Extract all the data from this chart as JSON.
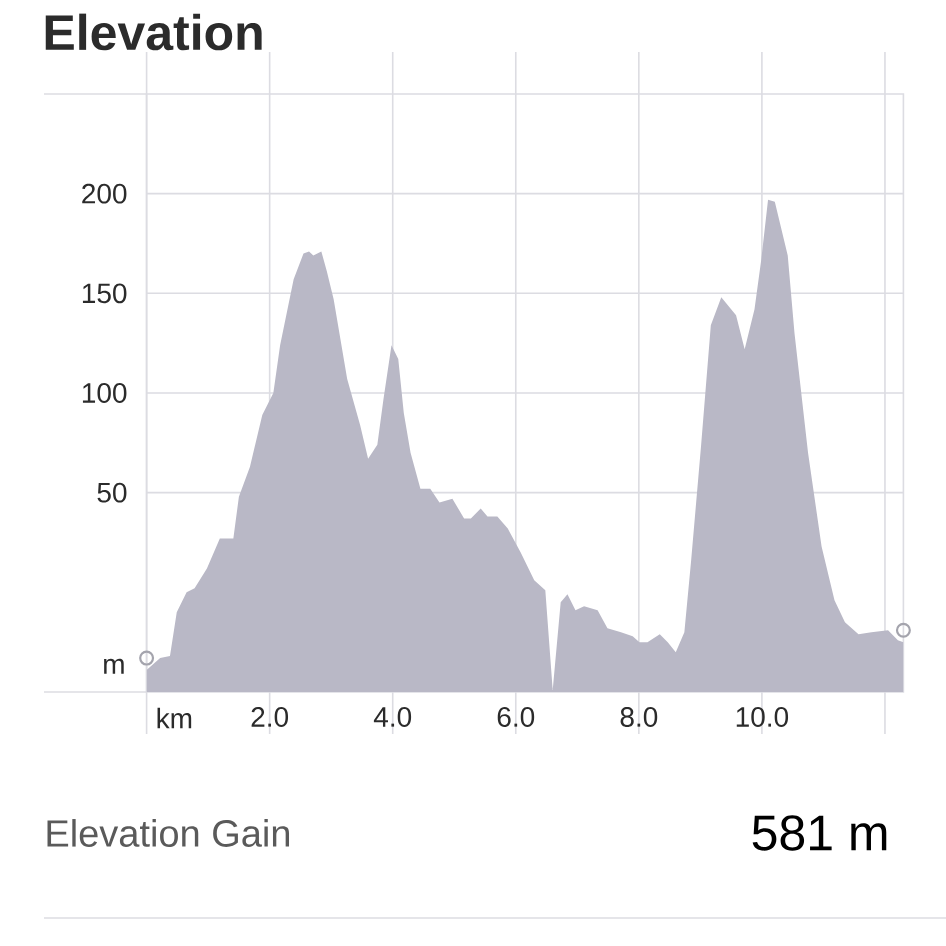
{
  "chart_data": {
    "type": "area",
    "title": "Elevation",
    "xlabel": "km",
    "ylabel": "m",
    "xlim": [
      0,
      12.3
    ],
    "ylim": [
      -50,
      250
    ],
    "xticks": [
      {
        "value": 0,
        "label": null
      },
      {
        "value": 2,
        "label": "2.0"
      },
      {
        "value": 4,
        "label": "4.0"
      },
      {
        "value": 6,
        "label": "6.0"
      },
      {
        "value": 8,
        "label": "8.0"
      },
      {
        "value": 10,
        "label": "10.0"
      },
      {
        "value": 12,
        "label": null
      }
    ],
    "yticks": [
      50,
      100,
      150,
      200
    ],
    "grid": true,
    "series": [
      {
        "color": "#b9b8c6",
        "x": [
          0,
          0.22,
          0.38,
          0.49,
          0.65,
          0.78,
          0.98,
          1.19,
          1.3,
          1.41,
          1.5,
          1.68,
          1.88,
          2.06,
          2.17,
          2.39,
          2.55,
          2.64,
          2.71,
          2.84,
          2.93,
          3.04,
          3.26,
          3.47,
          3.6,
          3.75,
          3.85,
          3.98,
          4.09,
          4.18,
          4.29,
          4.45,
          4.61,
          4.76,
          4.97,
          5.16,
          5.27,
          5.43,
          5.54,
          5.7,
          5.87,
          6.08,
          6.3,
          6.48,
          6.6,
          6.73,
          6.84,
          6.97,
          7.11,
          7.33,
          7.49,
          7.71,
          7.9,
          8.01,
          8.14,
          8.34,
          8.47,
          8.6,
          8.74,
          8.85,
          9.01,
          9.17,
          9.34,
          9.58,
          9.72,
          9.88,
          9.99,
          10.1,
          10.21,
          10.42,
          10.53,
          10.75,
          10.97,
          11.18,
          11.35,
          11.57,
          11.78,
          12.05,
          12.21,
          12.3
        ],
        "values": [
          -39,
          -33,
          -32,
          -10,
          0,
          2,
          12,
          27,
          27,
          27,
          48,
          63,
          89,
          100,
          124,
          157,
          170,
          171,
          169,
          171,
          161,
          147,
          107,
          84,
          67,
          74,
          97,
          124,
          117,
          90,
          70,
          52,
          52,
          45,
          47,
          37,
          37,
          42,
          38,
          38,
          32,
          20,
          6,
          1,
          -49,
          -5,
          -1,
          -9,
          -7,
          -9,
          -18,
          -20,
          -22,
          -25,
          -25,
          -21,
          -25,
          -30,
          -20,
          16,
          73,
          134,
          148,
          139,
          122,
          142,
          167,
          197,
          196,
          169,
          130,
          70,
          23,
          -4,
          -15,
          -21,
          -20,
          -19,
          -24,
          -25
        ]
      },
      {
        "type": "scatter",
        "color": "#a4a4ad",
        "marker": "circle",
        "x": [
          0,
          12.3
        ],
        "values": [
          -33,
          -19
        ]
      }
    ],
    "annotations": [
      "Elevation Gain",
      "581 m"
    ]
  }
}
